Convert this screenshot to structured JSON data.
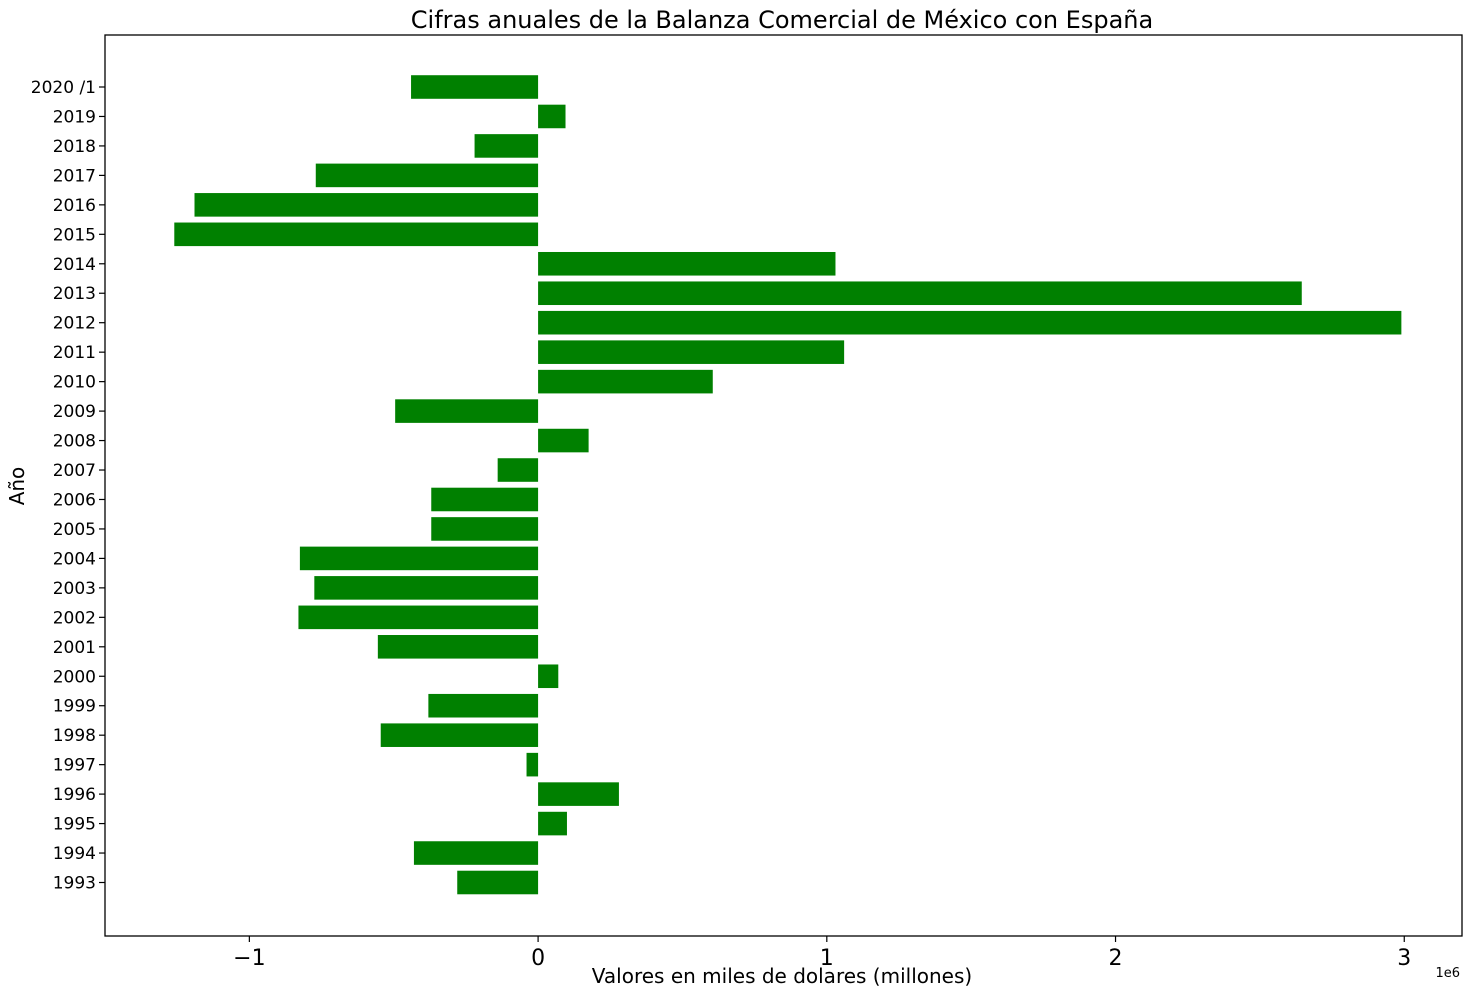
{
  "chart_data": {
    "type": "bar",
    "orientation": "horizontal",
    "title": "Cifras anuales de la Balanza Comercial de México con España",
    "xlabel": "Valores en miles de dolares (millones)",
    "ylabel": "Año",
    "offset_text": "1e6",
    "xlim": [
      -1.5,
      3.2
    ],
    "x_scale_multiplier": 1000000,
    "x_ticks": [
      -1,
      0,
      1,
      2,
      3
    ],
    "x_tick_labels": [
      "−1",
      "0",
      "1",
      "2",
      "3"
    ],
    "grid": false,
    "bar_color": "#008000",
    "categories": [
      "1993",
      "1994",
      "1995",
      "1996",
      "1997",
      "1998",
      "1999",
      "2000",
      "2001",
      "2002",
      "2003",
      "2004",
      "2005",
      "2006",
      "2007",
      "2008",
      "2009",
      "2010",
      "2011",
      "2012",
      "2013",
      "2014",
      "2015",
      "2016",
      "2017",
      "2018",
      "2019",
      "2020 /1"
    ],
    "values": [
      -0.28,
      -0.43,
      0.1,
      0.28,
      -0.04,
      -0.545,
      -0.38,
      0.07,
      -0.555,
      -0.83,
      -0.775,
      -0.825,
      -0.37,
      -0.37,
      -0.14,
      0.175,
      -0.495,
      0.605,
      1.06,
      2.99,
      2.645,
      1.03,
      -1.26,
      -1.19,
      -0.77,
      -0.22,
      0.095,
      -0.44
    ]
  }
}
